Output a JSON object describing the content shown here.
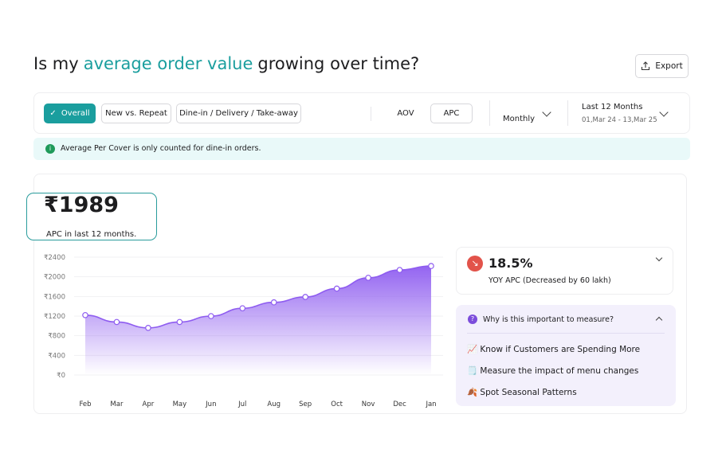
{
  "header": {
    "title_parts": [
      "Is my",
      "average order value",
      "growing over time?"
    ],
    "export": "Export"
  },
  "filters": {
    "segments": [
      "Overall",
      "New vs. Repeat",
      "Dine-in / Delivery / Take-away"
    ],
    "metrics": [
      "AOV",
      "APC"
    ],
    "period": "Monthly",
    "range_label": "Last 12 Months",
    "range_dates": "01,Mar 24 - 13,Mar 25"
  },
  "info": "Average Per Cover is only counted for dine-in orders.",
  "kpi": {
    "value": "₹1989",
    "caption": "APC in last 12 months."
  },
  "chart_data": {
    "type": "area",
    "categories": [
      "Feb",
      "Mar",
      "Apr",
      "May",
      "Jun",
      "Jul",
      "Aug",
      "Sep",
      "Oct",
      "Nov",
      "Dec",
      "Jan"
    ],
    "values": [
      1220,
      1080,
      960,
      1080,
      1200,
      1360,
      1480,
      1590,
      1760,
      1980,
      2140,
      2220
    ],
    "color": "#8e5cf0",
    "ylim": [
      0,
      2400
    ],
    "yticks": [
      {
        "value": 0,
        "label": "₹0"
      },
      {
        "value": 400,
        "label": "₹400"
      },
      {
        "value": 800,
        "label": "₹800"
      },
      {
        "value": 1200,
        "label": "₹1200"
      },
      {
        "value": 1600,
        "label": "₹1600"
      },
      {
        "value": 2000,
        "label": "₹2000"
      },
      {
        "value": 2400,
        "label": "₹2400"
      }
    ],
    "grid": true
  },
  "yoy": {
    "value": "18.5%",
    "caption": "YOY APC (Decreased by 60 lakh)"
  },
  "why": {
    "title": "Why is this important to measure?",
    "items": [
      "📈 Know if Customers are Spending More",
      "🗒️ Measure the impact of menu changes",
      "🍂 Spot Seasonal Patterns"
    ]
  }
}
